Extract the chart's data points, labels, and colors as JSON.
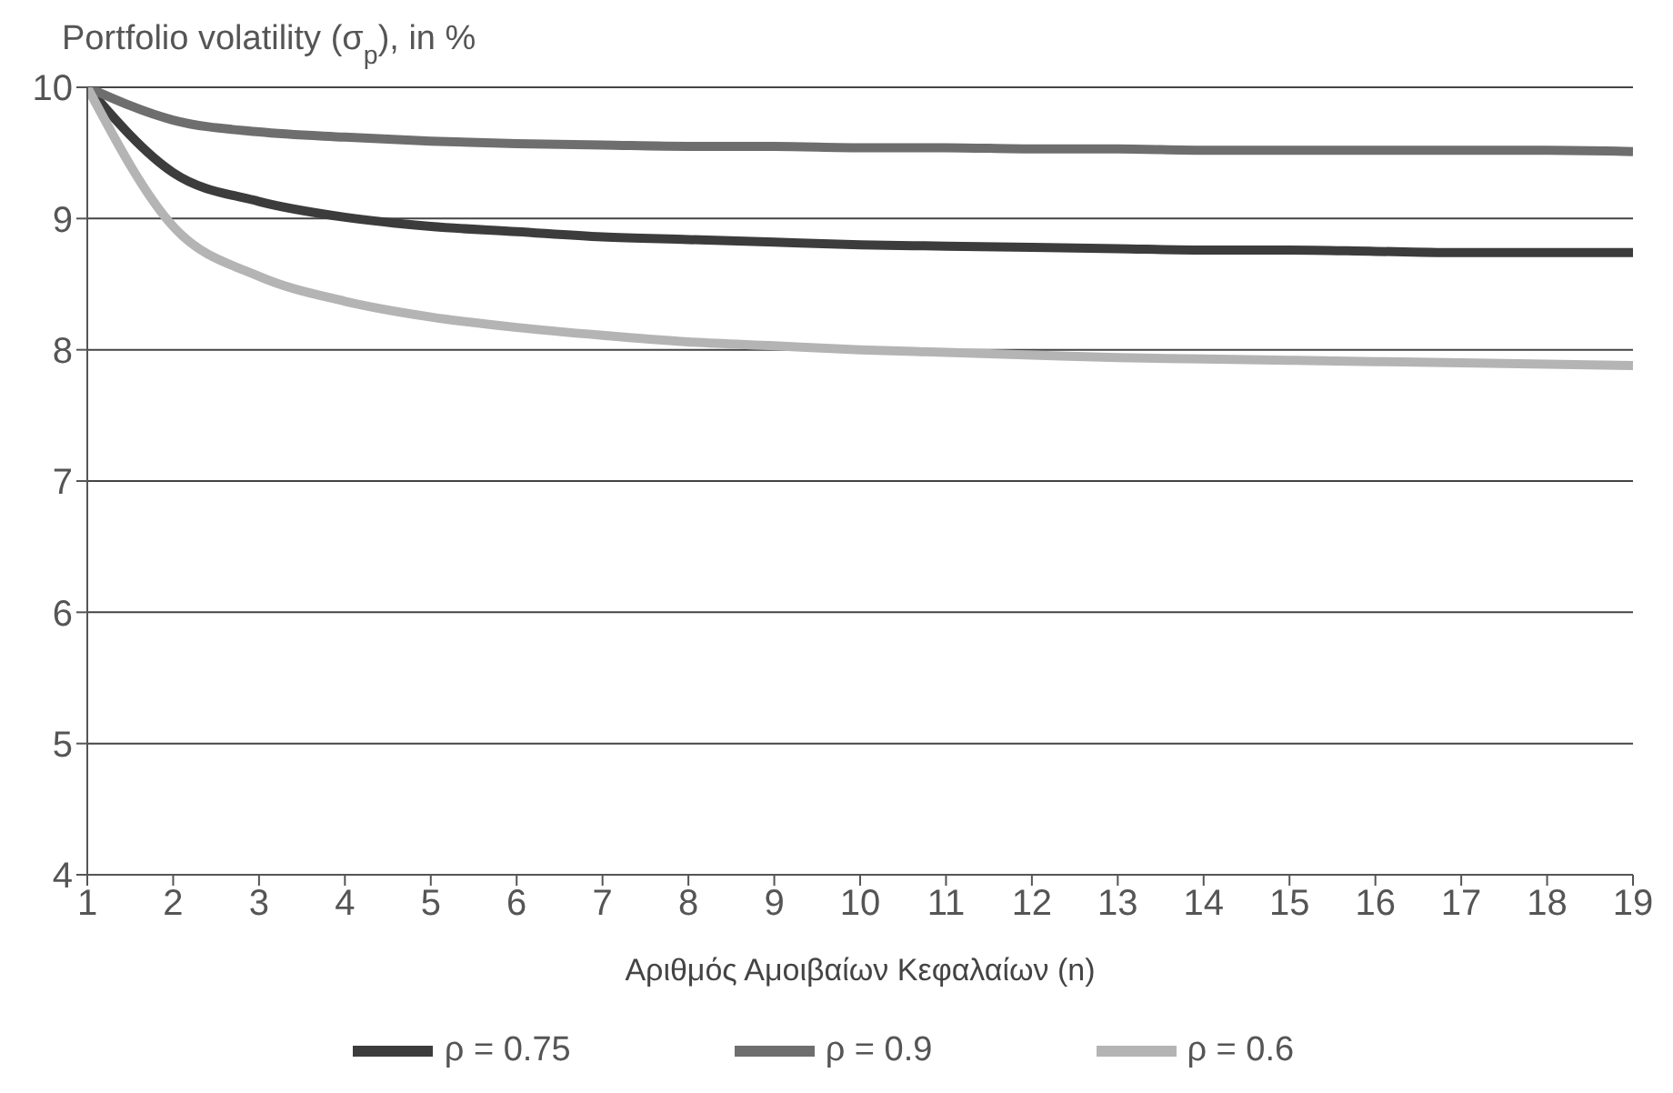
{
  "chart_data": {
    "type": "line",
    "ylabel": "Portfolio volatility (σ$_{p}$), in %",
    "xlabel": "Αριθμός Αμοιβαίων Κεφαλαίων (n)",
    "x": [
      1,
      2,
      3,
      4,
      5,
      6,
      7,
      8,
      9,
      10,
      11,
      12,
      13,
      14,
      15,
      16,
      17,
      18,
      19
    ],
    "series": [
      {
        "name": "ρ = 0.75",
        "color": "#3c3c3c",
        "values": [
          10,
          9.35,
          9.13,
          9.01,
          8.94,
          8.9,
          8.86,
          8.84,
          8.82,
          8.8,
          8.79,
          8.78,
          8.77,
          8.76,
          8.76,
          8.75,
          8.74,
          8.74,
          8.74
        ]
      },
      {
        "name": "ρ = 0.9",
        "color": "#6e6e6e",
        "values": [
          10,
          9.75,
          9.66,
          9.62,
          9.59,
          9.57,
          9.56,
          9.55,
          9.55,
          9.54,
          9.54,
          9.53,
          9.53,
          9.52,
          9.52,
          9.52,
          9.52,
          9.52,
          9.51
        ]
      },
      {
        "name": "ρ = 0.6",
        "color": "#b4b4b4",
        "values": [
          10,
          8.94,
          8.56,
          8.37,
          8.25,
          8.17,
          8.11,
          8.06,
          8.03,
          8,
          7.98,
          7.96,
          7.94,
          7.93,
          7.92,
          7.91,
          7.9,
          7.89,
          7.88
        ]
      }
    ],
    "xlim": [
      1,
      19
    ],
    "xticks": [
      1,
      2,
      3,
      4,
      5,
      6,
      7,
      8,
      9,
      10,
      11,
      12,
      13,
      14,
      15,
      16,
      17,
      18,
      19
    ],
    "ylim": [
      4,
      10
    ],
    "yticks": [
      4,
      5,
      6,
      7,
      8,
      9,
      10
    ],
    "grid": "y",
    "legend": "bottom",
    "marker": "none",
    "line_style": "solid"
  }
}
